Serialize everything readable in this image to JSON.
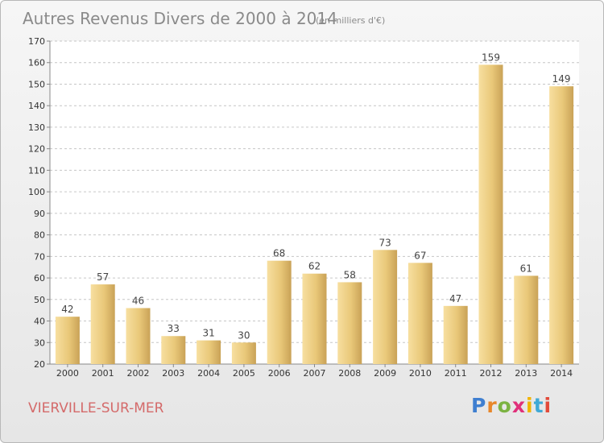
{
  "chart_data": {
    "type": "bar",
    "title": "Autres Revenus Divers de 2000 à 2014",
    "subtitle": "(en milliers d'€)",
    "categories": [
      "2000",
      "2001",
      "2002",
      "2003",
      "2004",
      "2005",
      "2006",
      "2007",
      "2008",
      "2009",
      "2010",
      "2011",
      "2012",
      "2013",
      "2014"
    ],
    "values": [
      42,
      57,
      46,
      33,
      31,
      30,
      68,
      62,
      58,
      73,
      67,
      47,
      159,
      61,
      149
    ],
    "ylim": [
      20,
      170
    ],
    "yticks": [
      20,
      30,
      40,
      50,
      60,
      70,
      80,
      90,
      100,
      110,
      120,
      130,
      140,
      150,
      160,
      170
    ],
    "grid": true,
    "bar_color": "#e9c879"
  },
  "footer": {
    "city": "VIERVILLE-SUR-MER",
    "logo_letters": [
      "P",
      "r",
      "o",
      "x",
      "i",
      "t",
      "i"
    ],
    "logo_colors": [
      "#3f7fd0",
      "#e8872a",
      "#7cb342",
      "#e0307a",
      "#f2b400",
      "#3fa9d6",
      "#e24a3a"
    ]
  }
}
